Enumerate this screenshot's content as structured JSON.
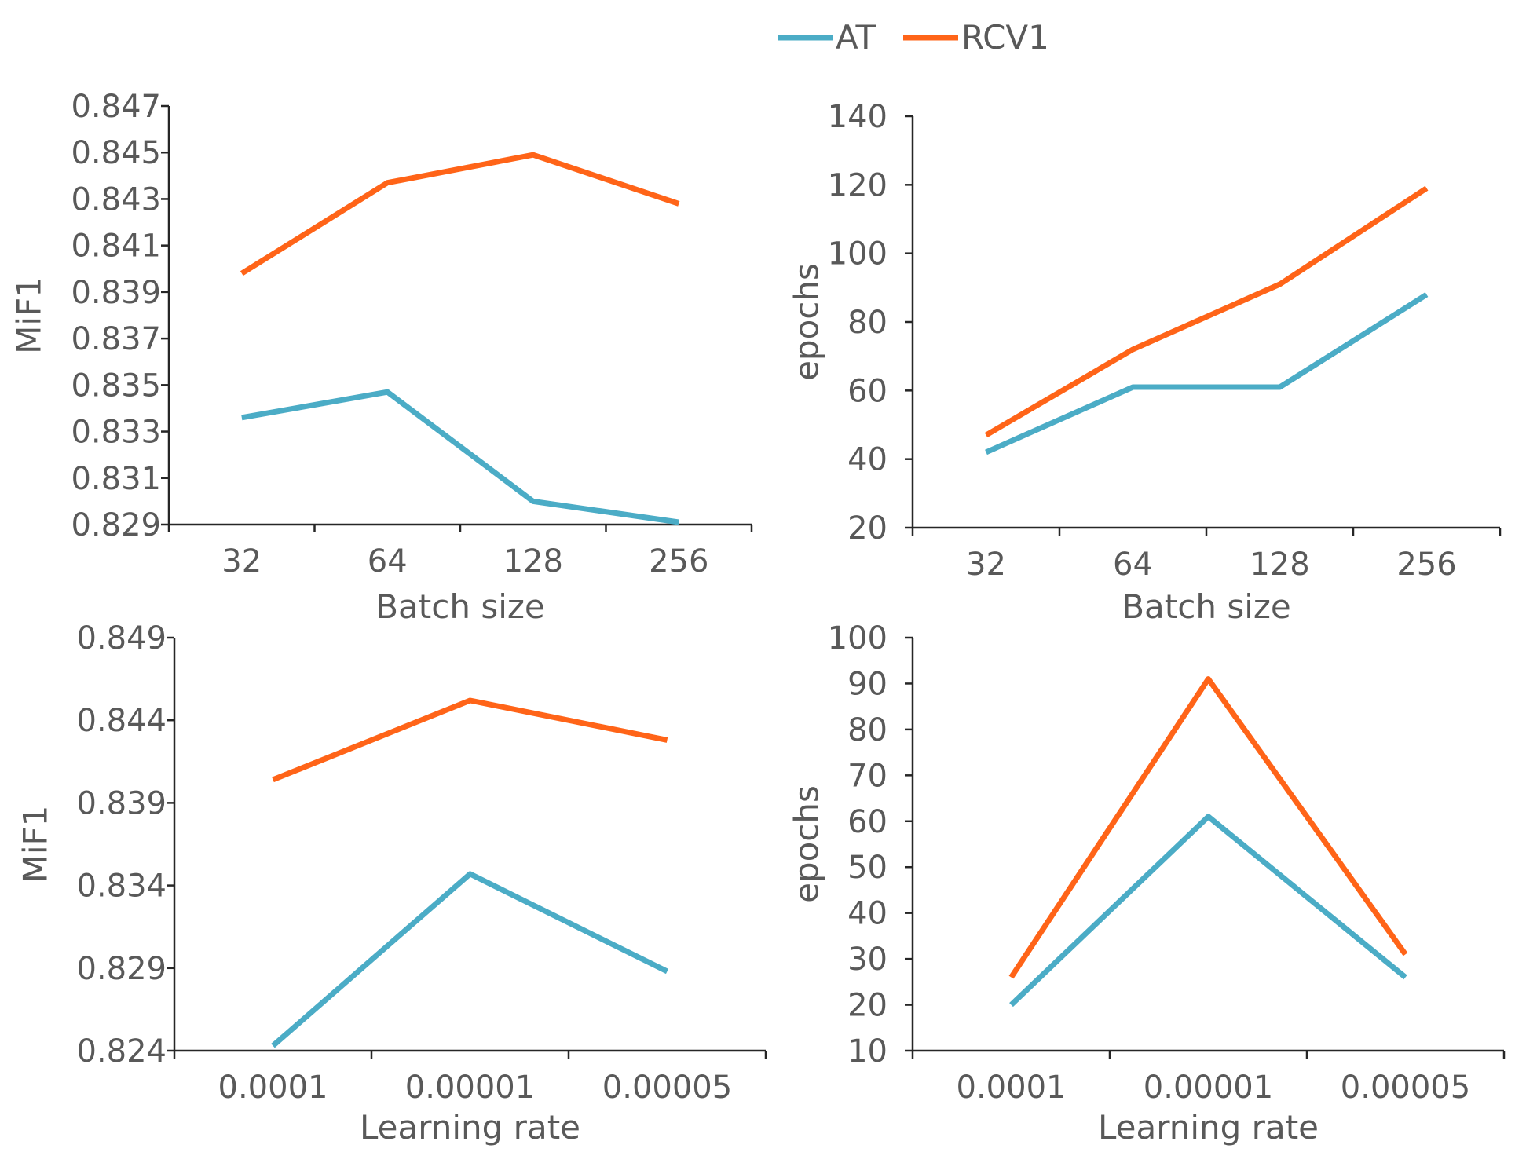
{
  "legend": [
    {
      "name": "AT",
      "color": "#4BACC6"
    },
    {
      "name": "RCV1",
      "color": "#FF6418"
    }
  ],
  "chart_data": [
    {
      "id": "batch-mif1",
      "type": "line",
      "title": "",
      "xlabel": "Batch size",
      "ylabel": "MiF1",
      "categories": [
        "32",
        "64",
        "128",
        "256"
      ],
      "ylim": [
        0.829,
        0.847
      ],
      "yticks": [
        "0.829",
        "0.831",
        "0.833",
        "0.835",
        "0.837",
        "0.839",
        "0.841",
        "0.843",
        "0.845",
        "0.847"
      ],
      "series": [
        {
          "name": "AT",
          "values": [
            0.8336,
            0.8347,
            0.83,
            0.8291
          ]
        },
        {
          "name": "RCV1",
          "values": [
            0.8398,
            0.8437,
            0.8449,
            0.8428
          ]
        }
      ]
    },
    {
      "id": "batch-epochs",
      "type": "line",
      "title": "",
      "xlabel": "Batch size",
      "ylabel": "epochs",
      "categories": [
        "32",
        "64",
        "128",
        "256"
      ],
      "ylim": [
        20,
        140
      ],
      "yticks": [
        "20",
        "40",
        "60",
        "80",
        "100",
        "120",
        "140"
      ],
      "series": [
        {
          "name": "AT",
          "values": [
            42,
            61,
            61,
            88
          ]
        },
        {
          "name": "RCV1",
          "values": [
            47,
            72,
            91,
            119
          ]
        }
      ]
    },
    {
      "id": "lr-mif1",
      "type": "line",
      "title": "",
      "xlabel": "Learning rate",
      "ylabel": "MiF1",
      "categories": [
        "0.0001",
        "0.00001",
        "0.00005"
      ],
      "ylim": [
        0.824,
        0.849
      ],
      "yticks": [
        "0.824",
        "0.829",
        "0.834",
        "0.839",
        "0.844",
        "0.849"
      ],
      "series": [
        {
          "name": "AT",
          "values": [
            0.8243,
            0.8347,
            0.8288
          ]
        },
        {
          "name": "RCV1",
          "values": [
            0.8404,
            0.8452,
            0.8428
          ]
        }
      ]
    },
    {
      "id": "lr-epochs",
      "type": "line",
      "title": "",
      "xlabel": "Learning rate",
      "ylabel": "epochs",
      "categories": [
        "0.0001",
        "0.00001",
        "0.00005"
      ],
      "ylim": [
        10,
        100
      ],
      "yticks": [
        "10",
        "20",
        "30",
        "40",
        "50",
        "60",
        "70",
        "80",
        "90",
        "100"
      ],
      "series": [
        {
          "name": "AT",
          "values": [
            20,
            61,
            26
          ]
        },
        {
          "name": "RCV1",
          "values": [
            26,
            91,
            31
          ]
        }
      ]
    }
  ]
}
